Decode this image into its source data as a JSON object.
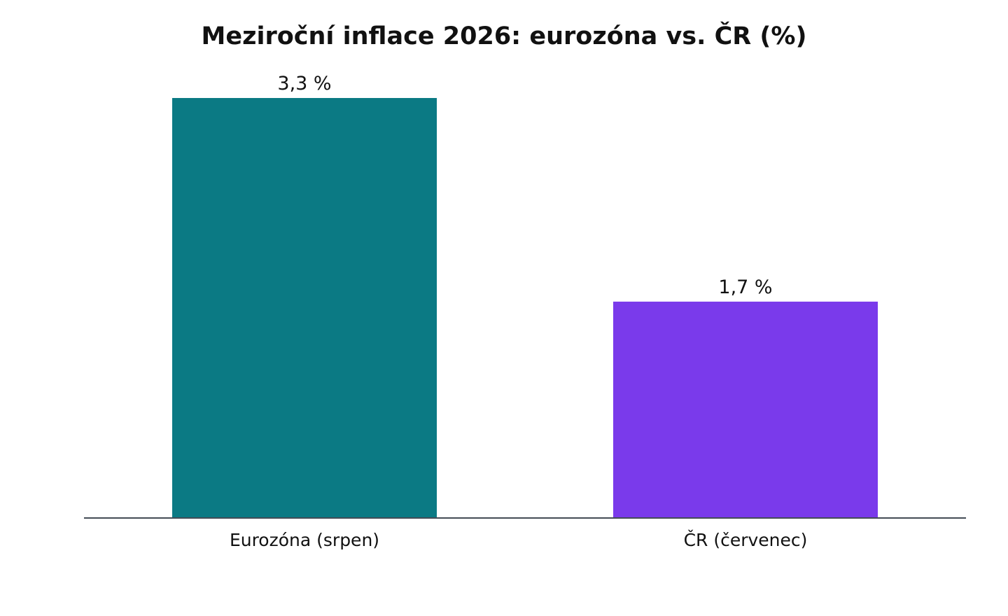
{
  "chart_data": {
    "type": "bar",
    "title": "Meziroční inflace 2026: eurozóna vs. ČR (%)",
    "xlabel": "",
    "ylabel": "",
    "categories": [
      "Eurozóna (srpen)",
      "ČR (červenec)"
    ],
    "values": [
      3.3,
      1.7
    ],
    "value_labels": [
      "3,3 %",
      "1,7 %"
    ],
    "colors": [
      "#0b7a84",
      "#7a3aeb"
    ],
    "axis_color": "#444c56",
    "ylim": [
      0,
      3.6
    ],
    "grid": false,
    "legend": "none"
  }
}
